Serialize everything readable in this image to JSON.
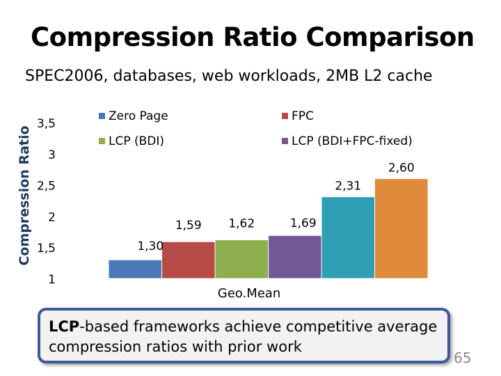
{
  "slide": {
    "title": "Compression Ratio Comparison",
    "subtitle": "SPEC2006, databases, web workloads, 2MB L2 cache",
    "note_bold": "LCP",
    "note_rest": "-based frameworks achieve competitive average compression ratios with prior work",
    "page_number": "65"
  },
  "chart_data": {
    "type": "bar",
    "categories": [
      "Geo.Mean"
    ],
    "xlabel": "Geo.Mean",
    "ylabel": "Compression Ratio",
    "ylim": [
      1,
      3.5
    ],
    "yticks": [
      "1",
      "1,5",
      "2",
      "2,5",
      "3",
      "3,5"
    ],
    "grid": false,
    "legend_position": "top",
    "series": [
      {
        "name": "Zero Page",
        "values": [
          1.3
        ],
        "label": "1,30",
        "color": "#4a7ab5"
      },
      {
        "name": "FPC",
        "values": [
          1.59
        ],
        "label": "1,59",
        "color": "#b54a47"
      },
      {
        "name": "LCP (BDI)",
        "values": [
          1.62
        ],
        "label": "1,62",
        "color": "#8fae4e"
      },
      {
        "name": "LCP (BDI+FPC-fixed)",
        "values": [
          1.69
        ],
        "label": "1,69",
        "color": "#735a97"
      },
      {
        "name": "",
        "values": [
          2.31
        ],
        "label": "2,31",
        "color": "#2f9fb5"
      },
      {
        "name": "",
        "values": [
          2.6
        ],
        "label": "2,60",
        "color": "#e08a3c"
      }
    ]
  }
}
